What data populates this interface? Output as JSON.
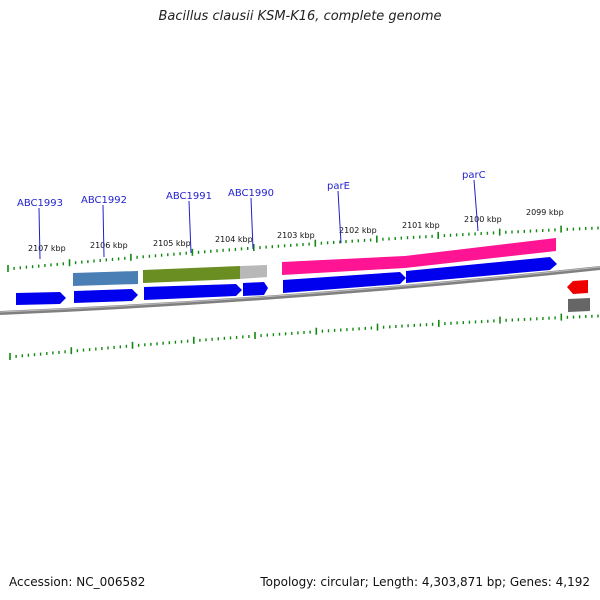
{
  "title": "Bacillus clausii KSM-K16, complete genome",
  "footer": {
    "accession": "Accession: NC_006582",
    "summary": "Topology: circular; Length: 4,303,871 bp; Genes: 4,192"
  },
  "ticks": [
    "2107 kbp",
    "2106 kbp",
    "2105 kbp",
    "2104 kbp",
    "2103 kbp",
    "2102 kbp",
    "2101 kbp",
    "2100 kbp",
    "2099 kbp"
  ],
  "gene_labels": [
    "ABC1993",
    "ABC1992",
    "ABC1991",
    "ABC1990",
    "parE",
    "parC"
  ],
  "colors": {
    "cds": "#0000ee",
    "cds_reverse": "#ee0000",
    "gene_steelblue": "#4a7fb5",
    "gene_olive": "#6b8e23",
    "gene_gray": "#b8b8b8",
    "gene_pink": "#ff1493",
    "backbone": "#888888",
    "tick": "#118811",
    "label": "#1f1fcf"
  }
}
